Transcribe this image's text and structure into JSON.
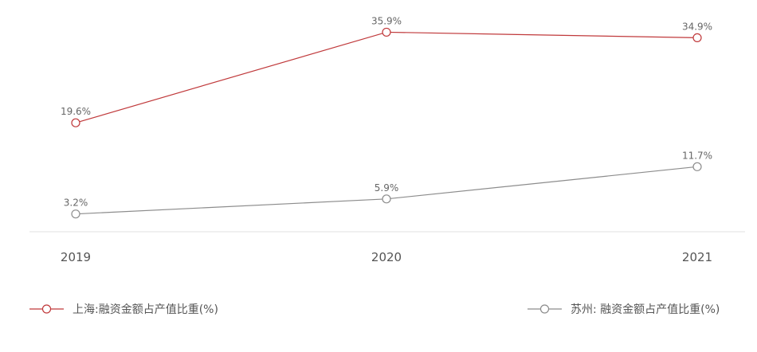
{
  "chart_data": {
    "type": "line",
    "categories": [
      "2019",
      "2020",
      "2021"
    ],
    "series": [
      {
        "name": "上海:融资金额占产值比重(%)",
        "values": [
          19.6,
          35.9,
          34.9
        ],
        "labels": [
          "19.6%",
          "35.9%",
          "34.9%"
        ],
        "color": "#c0393b"
      },
      {
        "name": "苏州: 融资金额占产值比重(%)",
        "values": [
          3.2,
          5.9,
          11.7
        ],
        "labels": [
          "3.2%",
          "5.9%",
          "11.7%"
        ],
        "color": "#8c8c8c"
      }
    ],
    "ylim": [
      0,
      40
    ],
    "grid": false,
    "legend": "bottom"
  }
}
